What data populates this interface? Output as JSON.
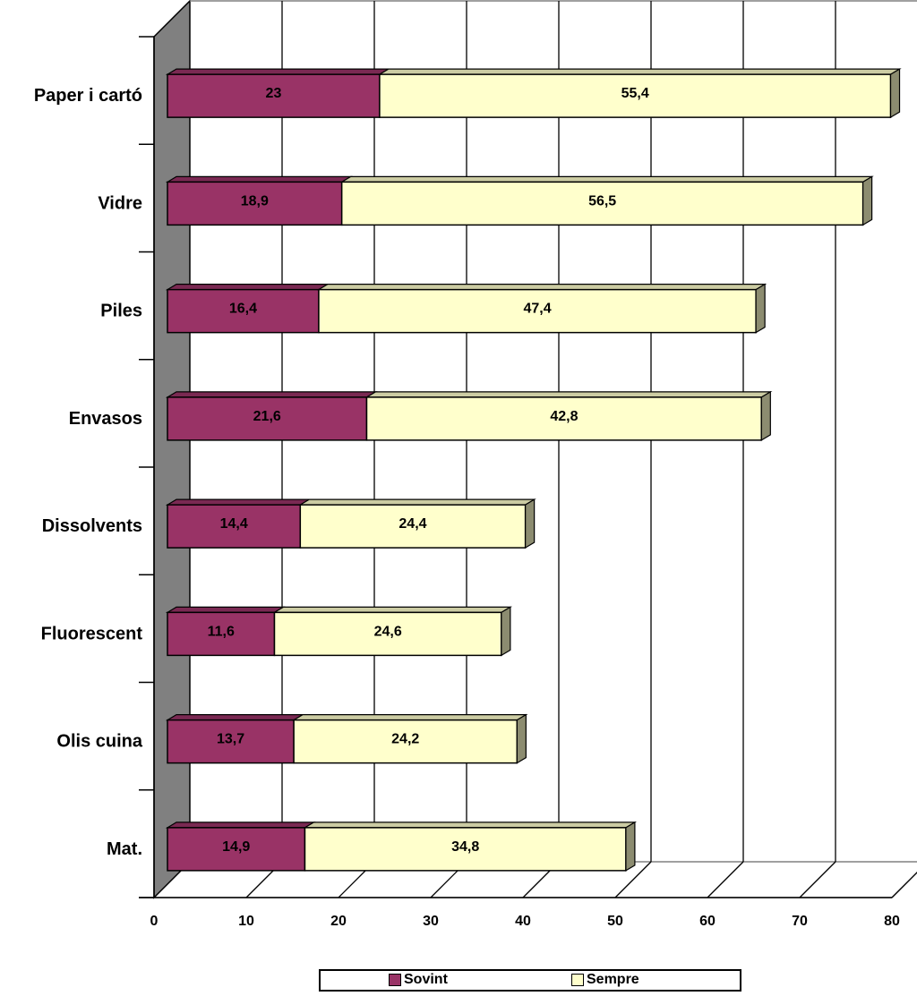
{
  "chart_data": {
    "type": "bar",
    "orientation": "horizontal",
    "stacked": true,
    "three_d": true,
    "categories": [
      "Paper i cartó",
      "Vidre",
      "Piles",
      "Envasos",
      "Dissolvents",
      "Fluorescent",
      "Olis cuina",
      "Mat."
    ],
    "series": [
      {
        "name": "Sovint",
        "color": "#993366",
        "values": [
          23,
          18.9,
          16.4,
          21.6,
          14.4,
          11.6,
          13.7,
          14.9
        ]
      },
      {
        "name": "Sempre",
        "color": "#ffffcc",
        "values": [
          55.4,
          56.5,
          47.4,
          42.8,
          24.4,
          24.6,
          24.2,
          34.8
        ]
      }
    ],
    "data_labels": {
      "Sovint": [
        "23",
        "18,9",
        "16,4",
        "21,6",
        "14,4",
        "11,6",
        "13,7",
        "14,9"
      ],
      "Sempre": [
        "55,4",
        "56,5",
        "47,4",
        "42,8",
        "24,4",
        "24,6",
        "24,2",
        "34,8"
      ]
    },
    "xticks": [
      0,
      10,
      20,
      30,
      40,
      50,
      60,
      70,
      80
    ],
    "xlim": [
      0,
      80
    ],
    "grid": true,
    "legend": "bottom",
    "title": "",
    "xlabel": "",
    "ylabel": ""
  }
}
